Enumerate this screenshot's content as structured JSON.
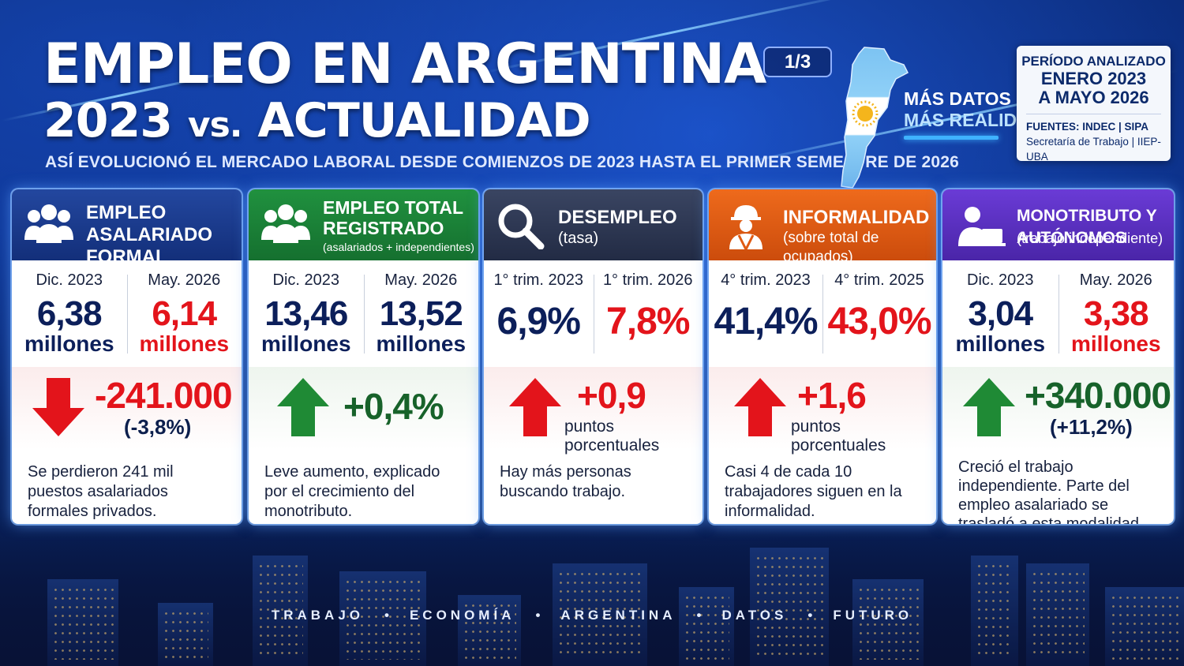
{
  "header": {
    "title_line1": "EMPLEO EN ARGENTINA",
    "title_line2_a": "2023",
    "title_line2_vs": "vs.",
    "title_line2_b": "ACTUALIDAD",
    "subtitle": "ASÍ EVOLUCIONÓ EL MERCADO LABORAL DESDE COMIENZOS DE 2023 HASTA EL PRIMER SEMESTRE DE 2026",
    "page_indicator": "1/3",
    "tagline_1": "MÁS DATOS",
    "tagline_2": "MÁS REALIDAD"
  },
  "period": {
    "label": "PERÍODO ANALIZADO",
    "range_1": "ENERO 2023",
    "range_2": "A MAYO 2026",
    "sources_1": "FUENTES: INDEC | SIPA",
    "sources_2": "Secretaría de Trabajo | IIEP-UBA"
  },
  "colors": {
    "card1": "#1a3a8f",
    "card2": "#1b7a3a",
    "card3": "#2b3550",
    "card4": "#e05a12",
    "card5": "#5b2fc0",
    "down_red": "#e3141b",
    "up_green": "#1f8a35"
  },
  "cards": [
    {
      "title": "EMPLEO ASALARIADO",
      "title2": "FORMAL PRIVADO",
      "icon": "group-icon",
      "left_label": "Dic. 2023",
      "left_value": "6,38",
      "left_unit": "millones",
      "right_label": "May. 2026",
      "right_value": "6,14",
      "right_unit": "millones",
      "change_direction": "down",
      "change_value": "-241.000",
      "change_sub": "(-3,8%)",
      "description": "Se perdieron 241 mil puestos asalariados formales privados."
    },
    {
      "title": "EMPLEO TOTAL",
      "title2": "REGISTRADO",
      "title3": "(asalariados + independientes)",
      "icon": "group-icon",
      "left_label": "Dic. 2023",
      "left_value": "13,46",
      "left_unit": "millones",
      "right_label": "May. 2026",
      "right_value": "13,52",
      "right_unit": "millones",
      "change_direction": "up",
      "change_value": "+0,4%",
      "description": "Leve aumento, explicado por el crecimiento del monotributo."
    },
    {
      "title": "DESEMPLEO",
      "title2": "(tasa)",
      "icon": "magnifier-icon",
      "left_label": "1° trim. 2023",
      "left_value": "6,9%",
      "right_label": "1° trim. 2026",
      "right_value": "7,8%",
      "change_direction": "up",
      "change_value": "+0,9",
      "change_sub": "puntos porcentuales",
      "description": "Hay más personas buscando trabajo."
    },
    {
      "title": "INFORMALIDAD",
      "title2": "(sobre total de ocupados)",
      "icon": "worker-icon",
      "left_label": "4° trim. 2023",
      "left_value": "41,4%",
      "right_label": "4° trim. 2025",
      "right_value": "43,0%",
      "change_direction": "up",
      "change_value": "+1,6",
      "change_sub": "puntos porcentuales",
      "description": "Casi 4 de cada 10 trabajadores siguen en la informalidad."
    },
    {
      "title": "MONOTRIBUTO Y AUTÓNOMOS",
      "title2": "(trabajo independiente)",
      "icon": "laptop-worker-icon",
      "left_label": "Dic. 2023",
      "left_value": "3,04",
      "left_unit": "millones",
      "right_label": "May. 2026",
      "right_value": "3,38",
      "right_unit": "millones",
      "change_direction": "up",
      "change_value": "+340.000",
      "change_sub": "(+11,2%)",
      "description": "Creció el trabajo independiente. Parte del empleo asalariado se trasladó a esta modalidad."
    }
  ],
  "footer": [
    "TRABAJO",
    "ECONOMÍA",
    "ARGENTINA",
    "DATOS",
    "FUTURO"
  ]
}
